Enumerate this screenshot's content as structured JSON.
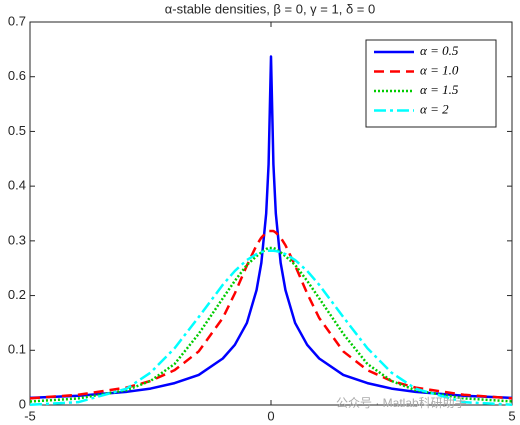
{
  "chart_data": {
    "type": "line",
    "title": "α-stable densities, β = 0, γ = 1, δ = 0",
    "x": [
      -5,
      -4,
      -3,
      -2.5,
      -2,
      -1.5,
      -1,
      -0.75,
      -0.5,
      -0.3,
      -0.2,
      -0.1,
      -0.05,
      0,
      0.05,
      0.1,
      0.2,
      0.3,
      0.5,
      0.75,
      1,
      1.5,
      2,
      2.5,
      3,
      4,
      5
    ],
    "series": [
      {
        "name": "α = 0.5",
        "color": "#0000ff",
        "dash": "none",
        "values": [
          0.013,
          0.017,
          0.024,
          0.03,
          0.04,
          0.055,
          0.085,
          0.11,
          0.15,
          0.21,
          0.26,
          0.35,
          0.44,
          0.637,
          0.44,
          0.35,
          0.26,
          0.21,
          0.15,
          0.11,
          0.085,
          0.055,
          0.04,
          0.03,
          0.024,
          0.017,
          0.013
        ]
      },
      {
        "name": "α = 1.0",
        "color": "#ff0000",
        "dash": "10 6",
        "values": [
          0.0122,
          0.0187,
          0.0318,
          0.0439,
          0.0637,
          0.0979,
          0.159,
          0.204,
          0.255,
          0.292,
          0.306,
          0.315,
          0.318,
          0.318,
          0.318,
          0.315,
          0.306,
          0.292,
          0.255,
          0.204,
          0.159,
          0.0979,
          0.0637,
          0.0439,
          0.0318,
          0.0187,
          0.0122
        ]
      },
      {
        "name": "α = 1.5",
        "color": "#00cc00",
        "dash": "2 2",
        "values": [
          0.0065,
          0.012,
          0.027,
          0.044,
          0.075,
          0.13,
          0.195,
          0.227,
          0.256,
          0.272,
          0.279,
          0.285,
          0.287,
          0.287,
          0.287,
          0.285,
          0.279,
          0.272,
          0.256,
          0.227,
          0.195,
          0.13,
          0.075,
          0.044,
          0.027,
          0.012,
          0.0065
        ]
      },
      {
        "name": "α = 2",
        "color": "#00ffff",
        "dash": "12 4 3 4",
        "values": [
          0.00054,
          0.0052,
          0.0297,
          0.0591,
          0.1038,
          0.1607,
          0.2197,
          0.2451,
          0.265,
          0.2758,
          0.2793,
          0.2814,
          0.282,
          0.2821,
          0.282,
          0.2814,
          0.2793,
          0.2758,
          0.265,
          0.2451,
          0.2197,
          0.1607,
          0.1038,
          0.0591,
          0.0297,
          0.0052,
          0.00054
        ]
      }
    ],
    "xlim": [
      -5,
      5
    ],
    "ylim": [
      0,
      0.7
    ],
    "xticks": [
      -5,
      0,
      5
    ],
    "yticks": [
      0,
      0.1,
      0.2,
      0.3,
      0.4,
      0.5,
      0.6,
      0.7
    ],
    "grid": false,
    "legend": "upper right",
    "watermark": "公众号 · Matlab科研助手"
  }
}
